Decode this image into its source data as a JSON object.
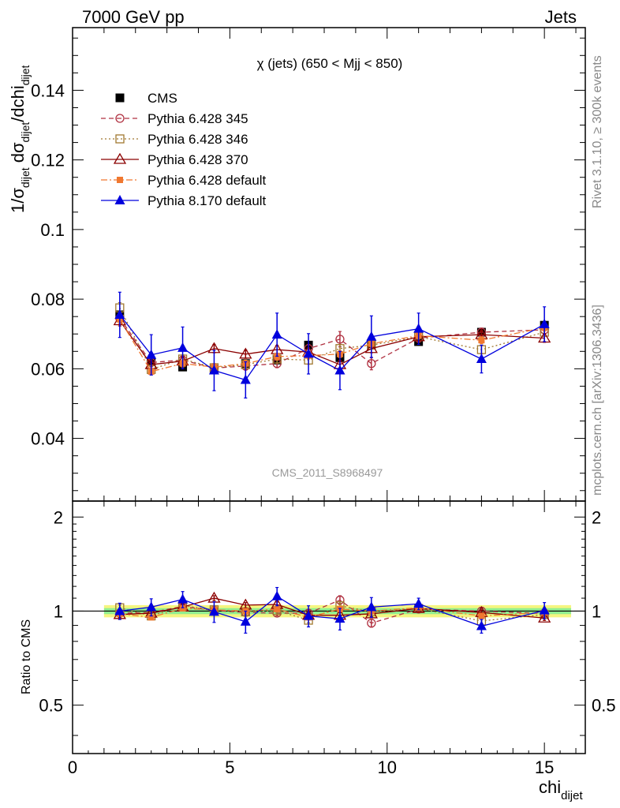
{
  "header": {
    "left": "7000 GeV pp",
    "right": "Jets"
  },
  "side_labels": {
    "rivet": "Rivet 3.1.10, ≥ 300k events",
    "mcplots": "mcplots.cern.ch [arXiv:1306.3436]"
  },
  "colors": {
    "CMS": "#000000",
    "p345": "#b03040",
    "p346": "#a07830",
    "p370": "#8b0000",
    "p6def": "#f07830",
    "p8def": "#0000dd",
    "band_outer": "#f5f580",
    "band_inner": "#90ee90"
  },
  "chart_data": {
    "type": "scatter",
    "title": "χ (jets) (650 < Mjj <  850)",
    "watermark": "CMS_2011_S8968497",
    "xlabel": "chi",
    "xlabel_sub": "dijet",
    "ylabel": {
      "a": "1/σ",
      "a_sub": "dijet",
      "b": " dσ",
      "b_sub": "dijet",
      "c": "/dchi",
      "c_sub": "dijet"
    },
    "ratio_ylabel": "Ratio to CMS",
    "xlim": [
      0,
      16.3
    ],
    "ylim": [
      0.022,
      0.158
    ],
    "ratio_ylim": [
      0.35,
      2.25
    ],
    "x_ticks": [
      0,
      5,
      10,
      15
    ],
    "x_tick_labels": [
      "0",
      "5",
      "10",
      "15"
    ],
    "y_ticks": [
      0.04,
      0.06,
      0.08,
      0.1,
      0.12,
      0.14
    ],
    "y_tick_labels": [
      "0.04",
      "0.06",
      "0.08",
      "0.1",
      "0.12",
      "0.14"
    ],
    "ratio_ticks": [
      0.5,
      1,
      2
    ],
    "ratio_tick_labels": [
      "0.5",
      "1",
      "2"
    ],
    "bins": [
      [
        1,
        2
      ],
      [
        2,
        3
      ],
      [
        3,
        4
      ],
      [
        4,
        5
      ],
      [
        5,
        6
      ],
      [
        6,
        7
      ],
      [
        7,
        8
      ],
      [
        8,
        9
      ],
      [
        9,
        10
      ],
      [
        10,
        12
      ],
      [
        12,
        14
      ],
      [
        14,
        16
      ]
    ],
    "x": [
      1.5,
      2.5,
      3.5,
      4.5,
      5.5,
      6.5,
      7.5,
      8.5,
      9.5,
      11,
      13,
      15
    ],
    "ratio_band": {
      "outer": 0.045,
      "inner": 0.022
    },
    "series": [
      {
        "name": "CMS",
        "key": "CMS",
        "marker": "square-filled",
        "line": "none",
        "values": [
          0.0755,
          0.062,
          0.0605,
          0.0598,
          0.0615,
          0.0625,
          0.0668,
          0.0632,
          0.0672,
          0.0678,
          0.0705,
          0.0725
        ],
        "ratio": [
          1,
          1,
          1,
          1,
          1,
          1,
          1,
          1,
          1,
          1,
          1,
          1
        ]
      },
      {
        "name": "Pythia 6.428 345",
        "key": "p345",
        "marker": "circle-open",
        "line": "dashed",
        "values": [
          0.0745,
          0.0618,
          0.0625,
          0.0602,
          0.0608,
          0.0615,
          0.0658,
          0.0685,
          0.0615,
          0.0688,
          0.0705,
          0.0712
        ],
        "ratio": [
          0.985,
          0.99,
          1.035,
          1.005,
          0.99,
          0.985,
          0.985,
          1.085,
          0.915,
          1.015,
          1.0,
          0.982
        ],
        "errors": [
          0.0018,
          0.0012,
          0.0012,
          0.0012,
          0.0012,
          0.0012,
          0.0012,
          0.0022,
          0.0018,
          0.0012,
          0.0012,
          0.0012
        ]
      },
      {
        "name": "Pythia 6.428 346",
        "key": "p346",
        "marker": "square-open",
        "line": "dotted",
        "values": [
          0.0775,
          0.0598,
          0.0628,
          0.0603,
          0.0612,
          0.0628,
          0.0625,
          0.0658,
          0.0668,
          0.0692,
          0.0655,
          0.0705
        ],
        "ratio": [
          1.025,
          0.965,
          1.04,
          1.01,
          0.995,
          1.005,
          0.935,
          1.04,
          0.995,
          1.02,
          0.93,
          0.975
        ],
        "errors": [
          0.0015,
          0.0012,
          0.0012,
          0.0012,
          0.0012,
          0.0012,
          0.0012,
          0.0012,
          0.0012,
          0.0012,
          0.0012,
          0.0012
        ]
      },
      {
        "name": "Pythia 6.428 370",
        "key": "p370",
        "marker": "triangle-open",
        "line": "solid",
        "values": [
          0.0738,
          0.0612,
          0.0622,
          0.0658,
          0.0642,
          0.0655,
          0.0648,
          0.0612,
          0.0658,
          0.0692,
          0.0698,
          0.0688
        ],
        "ratio": [
          0.975,
          0.985,
          1.03,
          1.1,
          1.045,
          1.05,
          0.97,
          0.97,
          0.98,
          1.02,
          0.99,
          0.95
        ],
        "errors": [
          0.0015,
          0.0012,
          0.0012,
          0.0012,
          0.0012,
          0.0012,
          0.0012,
          0.0012,
          0.0012,
          0.0012,
          0.0012,
          0.0012
        ]
      },
      {
        "name": "Pythia 6.428 default",
        "key": "p6def",
        "marker": "square-filled-small",
        "line": "dashdot",
        "values": [
          0.0742,
          0.0592,
          0.0615,
          0.0605,
          0.0615,
          0.0635,
          0.0638,
          0.0642,
          0.0672,
          0.0695,
          0.0682,
          0.0718
        ],
        "ratio": [
          0.98,
          0.955,
          1.02,
          1.01,
          1.0,
          1.015,
          0.955,
          1.015,
          1.0,
          1.025,
          0.965,
          0.99
        ],
        "errors": [
          0.0012,
          0.001,
          0.001,
          0.001,
          0.001,
          0.001,
          0.001,
          0.001,
          0.001,
          0.001,
          0.001,
          0.001
        ]
      },
      {
        "name": "Pythia 8.170 default",
        "key": "p8def",
        "marker": "triangle-filled",
        "line": "solid",
        "values": [
          0.0755,
          0.064,
          0.066,
          0.0595,
          0.0568,
          0.0698,
          0.0643,
          0.0595,
          0.0692,
          0.0715,
          0.0628,
          0.0728
        ],
        "ratio": [
          1.0,
          1.03,
          1.09,
          0.995,
          0.925,
          1.115,
          0.965,
          0.945,
          1.03,
          1.055,
          0.895,
          1.005
        ],
        "errors": [
          0.0065,
          0.0058,
          0.006,
          0.0058,
          0.0052,
          0.0062,
          0.0058,
          0.0055,
          0.006,
          0.0045,
          0.004,
          0.005
        ],
        "ratio_errors": [
          0.06,
          0.065,
          0.065,
          0.075,
          0.075,
          0.075,
          0.075,
          0.075,
          0.075,
          0.045,
          0.045,
          0.06
        ]
      }
    ]
  }
}
